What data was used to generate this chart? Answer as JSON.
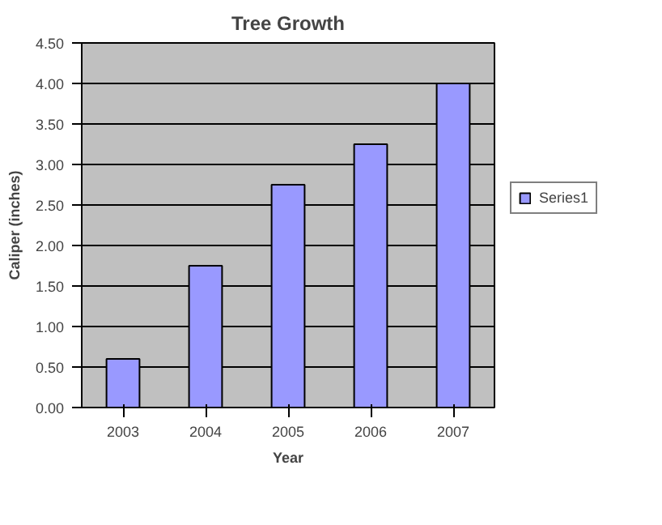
{
  "chart_data": {
    "type": "bar",
    "title": "Tree Growth",
    "xlabel": "Year",
    "ylabel": "Caliper (inches)",
    "categories": [
      "2003",
      "2004",
      "2005",
      "2006",
      "2007"
    ],
    "series": [
      {
        "name": "Series1",
        "color": "#9999ff",
        "values": [
          0.6,
          1.75,
          2.75,
          3.25,
          4.0
        ]
      }
    ],
    "ylim": [
      0,
      4.5
    ],
    "yticks": [
      {
        "value": 0,
        "label": "0.00"
      },
      {
        "value": 0.5,
        "label": "0.50"
      },
      {
        "value": 1,
        "label": "1.00"
      },
      {
        "value": 1.5,
        "label": "1.50"
      },
      {
        "value": 2,
        "label": "2.00"
      },
      {
        "value": 2.5,
        "label": "2.50"
      },
      {
        "value": 3,
        "label": "3.00"
      },
      {
        "value": 3.5,
        "label": "3.50"
      },
      {
        "value": 4,
        "label": "4.00"
      },
      {
        "value": 4.5,
        "label": "4.50"
      }
    ],
    "grid": "y",
    "legend": "right"
  }
}
